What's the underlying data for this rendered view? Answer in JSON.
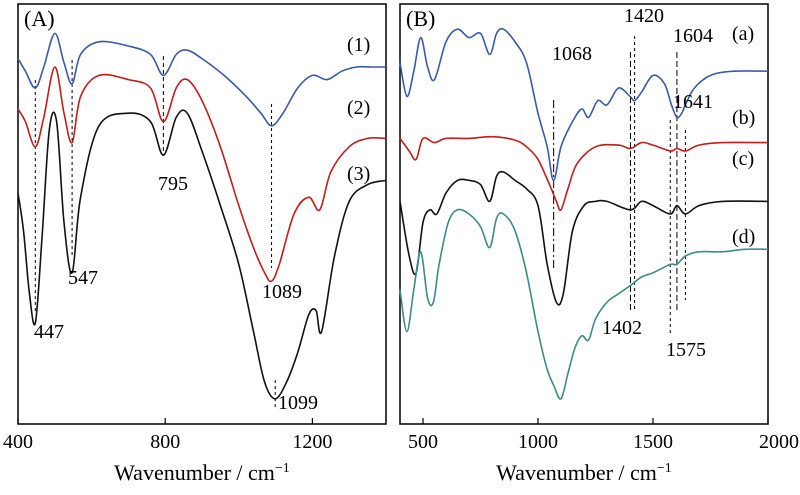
{
  "chart_data": [
    {
      "panel_label": "(A)",
      "type": "line",
      "xlabel": "Wavenumber / cm",
      "xlabel_sup": "−1",
      "ylabel": "",
      "xlim": [
        400,
        1400
      ],
      "xticks": [
        "400",
        "800",
        "1200"
      ],
      "grid": false,
      "series": [
        {
          "name": "(1)",
          "color": "#3a5aa8",
          "x": [
            400,
            420,
            447,
            470,
            500,
            525,
            547,
            570,
            620,
            700,
            760,
            795,
            830,
            860,
            900,
            960,
            1020,
            1060,
            1089,
            1120,
            1160,
            1200,
            1240,
            1280,
            1320,
            1360,
            1400
          ],
          "y": [
            4.65,
            4.5,
            4.3,
            4.55,
            4.95,
            4.6,
            4.35,
            4.7,
            4.85,
            4.8,
            4.7,
            4.45,
            4.7,
            4.75,
            4.65,
            4.45,
            4.2,
            4.0,
            3.85,
            4.0,
            4.3,
            4.45,
            4.4,
            4.5,
            4.55,
            4.55,
            4.55
          ]
        },
        {
          "name": "(2)",
          "color": "#c21e1e",
          "x": [
            400,
            420,
            447,
            470,
            500,
            525,
            547,
            570,
            620,
            700,
            760,
            795,
            830,
            860,
            900,
            950,
            1000,
            1040,
            1070,
            1089,
            1110,
            1150,
            1190,
            1220,
            1250,
            1300,
            1350,
            1400
          ],
          "y": [
            4.05,
            3.9,
            3.6,
            3.95,
            4.55,
            4.0,
            3.65,
            4.2,
            4.45,
            4.4,
            4.3,
            3.9,
            4.3,
            4.4,
            4.15,
            3.6,
            2.9,
            2.4,
            2.1,
            2.0,
            2.2,
            2.8,
            3.0,
            2.85,
            3.3,
            3.6,
            3.7,
            3.7
          ]
        },
        {
          "name": "(3)",
          "color": "#111111",
          "x": [
            400,
            415,
            430,
            447,
            465,
            485,
            505,
            525,
            547,
            570,
            620,
            700,
            760,
            795,
            830,
            860,
            900,
            950,
            1000,
            1040,
            1070,
            1099,
            1130,
            1160,
            1190,
            1210,
            1225,
            1260,
            1300,
            1350,
            1400
          ],
          "y": [
            3.05,
            2.6,
            1.9,
            1.5,
            2.5,
            3.8,
            3.9,
            2.7,
            2.1,
            3.0,
            3.85,
            4.0,
            3.9,
            3.5,
            3.95,
            4.0,
            3.55,
            2.9,
            2.2,
            1.4,
            0.8,
            0.6,
            0.8,
            1.15,
            1.6,
            1.65,
            1.4,
            2.3,
            2.95,
            3.15,
            3.2
          ]
        }
      ],
      "annotations": [
        {
          "text": "447",
          "x": 447
        },
        {
          "text": "547",
          "x": 547
        },
        {
          "text": "795",
          "x": 795
        },
        {
          "text": "1089",
          "x": 1089
        },
        {
          "text": "1099",
          "x": 1099
        }
      ]
    },
    {
      "panel_label": "(B)",
      "type": "line",
      "xlabel": "Wavenumber / cm",
      "xlabel_sup": "−1",
      "ylabel": "",
      "xlim": [
        400,
        2000
      ],
      "xticks": [
        "500",
        "1000",
        "1500",
        "2000"
      ],
      "grid": false,
      "series": [
        {
          "name": "(a)",
          "color": "#3a5aa8",
          "x": [
            400,
            430,
            460,
            490,
            520,
            550,
            600,
            650,
            700,
            750,
            790,
            820,
            850,
            900,
            950,
            1000,
            1040,
            1068,
            1100,
            1150,
            1190,
            1220,
            1260,
            1300,
            1350,
            1400,
            1420,
            1450,
            1500,
            1550,
            1580,
            1604,
            1625,
            1641,
            1680,
            1750,
            1850,
            2000
          ],
          "y": [
            4.6,
            4.2,
            4.5,
            4.9,
            4.55,
            4.4,
            4.85,
            5.0,
            4.9,
            4.95,
            4.7,
            4.95,
            5.0,
            4.85,
            4.6,
            4.0,
            3.6,
            3.2,
            3.6,
            3.9,
            4.05,
            3.95,
            4.15,
            4.1,
            4.3,
            4.2,
            4.15,
            4.25,
            4.45,
            4.35,
            4.1,
            3.95,
            4.0,
            4.1,
            4.3,
            4.45,
            4.5,
            4.5
          ]
        },
        {
          "name": "(b)",
          "color": "#c21e1e",
          "x": [
            400,
            440,
            470,
            500,
            550,
            600,
            700,
            800,
            900,
            950,
            1000,
            1050,
            1080,
            1100,
            1130,
            1170,
            1250,
            1350,
            1402,
            1450,
            1500,
            1575,
            1604,
            1641,
            1700,
            1800,
            2000
          ],
          "y": [
            3.7,
            3.55,
            3.45,
            3.7,
            3.65,
            3.7,
            3.7,
            3.72,
            3.68,
            3.6,
            3.45,
            3.15,
            2.95,
            2.85,
            3.1,
            3.4,
            3.6,
            3.62,
            3.58,
            3.65,
            3.62,
            3.55,
            3.58,
            3.55,
            3.62,
            3.65,
            3.65
          ]
        },
        {
          "name": "(c)",
          "color": "#111111",
          "x": [
            400,
            440,
            470,
            500,
            530,
            560,
            600,
            650,
            700,
            750,
            790,
            820,
            850,
            900,
            950,
            1000,
            1040,
            1080,
            1110,
            1150,
            1200,
            1250,
            1300,
            1402,
            1450,
            1500,
            1575,
            1604,
            1641,
            1700,
            1800,
            2000
          ],
          "y": [
            2.95,
            2.3,
            2.1,
            2.7,
            2.85,
            2.8,
            3.05,
            3.2,
            3.2,
            3.15,
            2.95,
            3.25,
            3.3,
            3.2,
            3.1,
            2.9,
            2.2,
            1.75,
            1.85,
            2.6,
            2.9,
            2.95,
            2.95,
            2.85,
            2.95,
            2.9,
            2.8,
            2.9,
            2.8,
            2.9,
            2.95,
            2.95
          ]
        },
        {
          "name": "(d)",
          "color": "#3f8a86",
          "x": [
            400,
            430,
            460,
            490,
            520,
            545,
            570,
            610,
            650,
            700,
            750,
            790,
            820,
            850,
            900,
            950,
            1000,
            1040,
            1070,
            1100,
            1130,
            1160,
            1190,
            1220,
            1250,
            1300,
            1350,
            1402,
            1450,
            1500,
            1575,
            1604,
            1641,
            1700,
            1800,
            1900,
            2000
          ],
          "y": [
            1.9,
            1.4,
            1.9,
            2.35,
            1.8,
            1.75,
            2.2,
            2.7,
            2.85,
            2.8,
            2.65,
            2.4,
            2.75,
            2.8,
            2.6,
            2.1,
            1.4,
            0.95,
            0.75,
            0.6,
            0.9,
            1.2,
            1.35,
            1.3,
            1.55,
            1.75,
            1.85,
            1.95,
            2.05,
            2.1,
            2.2,
            2.2,
            2.3,
            2.35,
            2.35,
            2.38,
            2.38
          ]
        }
      ],
      "annotations": [
        {
          "text": "1068",
          "x": 1068
        },
        {
          "text": "1420",
          "x": 1420
        },
        {
          "text": "1604",
          "x": 1604
        },
        {
          "text": "1641",
          "x": 1641
        },
        {
          "text": "1402",
          "x": 1402
        },
        {
          "text": "1575",
          "x": 1575
        }
      ]
    }
  ]
}
